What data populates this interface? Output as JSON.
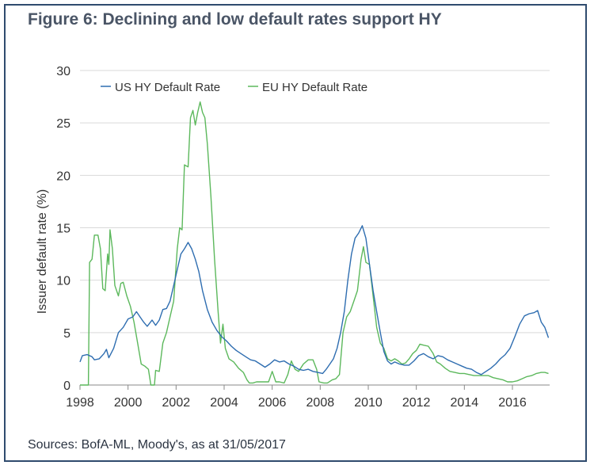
{
  "figure": {
    "title": "Figure 6: Declining and low default rates support HY",
    "source": "Sources: BofA-ML, Moody's, as at 31/05/2017"
  },
  "colors": {
    "us": "#2e6db0",
    "eu": "#5cb85c",
    "grid": "#d9d9d9",
    "frame": "#2f4b6e"
  },
  "chart_data": {
    "type": "line",
    "ylabel": "Issuer default rate (%)",
    "xlabel": "",
    "ylim": [
      0,
      30
    ],
    "xlim": [
      1998.0,
      2017.55
    ],
    "yticks": [
      0,
      5,
      10,
      15,
      20,
      25,
      30
    ],
    "xticks": [
      1998,
      2000,
      2002,
      2004,
      2006,
      2008,
      2010,
      2012,
      2014,
      2016
    ],
    "grid": "horizontal",
    "legend": "top-left",
    "series": [
      {
        "name": "US HY Default Rate",
        "color": "#2e6db0",
        "points": [
          [
            1998.0,
            2.2
          ],
          [
            1998.1,
            2.8
          ],
          [
            1998.3,
            2.9
          ],
          [
            1998.5,
            2.7
          ],
          [
            1998.6,
            2.4
          ],
          [
            1998.8,
            2.5
          ],
          [
            1999.0,
            3.0
          ],
          [
            1999.1,
            3.4
          ],
          [
            1999.2,
            2.6
          ],
          [
            1999.4,
            3.5
          ],
          [
            1999.6,
            5.0
          ],
          [
            1999.8,
            5.5
          ],
          [
            2000.0,
            6.3
          ],
          [
            2000.2,
            6.5
          ],
          [
            2000.35,
            7.0
          ],
          [
            2000.5,
            6.5
          ],
          [
            2000.65,
            6.0
          ],
          [
            2000.8,
            5.6
          ],
          [
            2001.0,
            6.2
          ],
          [
            2001.15,
            5.7
          ],
          [
            2001.3,
            6.2
          ],
          [
            2001.45,
            7.2
          ],
          [
            2001.6,
            7.3
          ],
          [
            2001.75,
            8.0
          ],
          [
            2001.9,
            9.5
          ],
          [
            2002.05,
            11.0
          ],
          [
            2002.2,
            12.5
          ],
          [
            2002.35,
            13.0
          ],
          [
            2002.5,
            13.6
          ],
          [
            2002.65,
            13.0
          ],
          [
            2002.8,
            12.0
          ],
          [
            2002.95,
            10.8
          ],
          [
            2003.1,
            9.0
          ],
          [
            2003.3,
            7.2
          ],
          [
            2003.5,
            6.0
          ],
          [
            2003.7,
            5.2
          ],
          [
            2003.9,
            4.6
          ],
          [
            2004.1,
            4.2
          ],
          [
            2004.3,
            3.7
          ],
          [
            2004.5,
            3.3
          ],
          [
            2004.7,
            3.0
          ],
          [
            2004.9,
            2.7
          ],
          [
            2005.1,
            2.4
          ],
          [
            2005.3,
            2.3
          ],
          [
            2005.5,
            2.0
          ],
          [
            2005.7,
            1.7
          ],
          [
            2005.9,
            2.0
          ],
          [
            2006.1,
            2.4
          ],
          [
            2006.3,
            2.2
          ],
          [
            2006.5,
            2.3
          ],
          [
            2006.7,
            2.0
          ],
          [
            2006.9,
            1.8
          ],
          [
            2007.1,
            1.5
          ],
          [
            2007.3,
            1.4
          ],
          [
            2007.5,
            1.5
          ],
          [
            2007.7,
            1.3
          ],
          [
            2007.9,
            1.2
          ],
          [
            2008.1,
            1.1
          ],
          [
            2008.25,
            1.5
          ],
          [
            2008.4,
            2.0
          ],
          [
            2008.55,
            2.5
          ],
          [
            2008.7,
            3.5
          ],
          [
            2008.85,
            5.0
          ],
          [
            2009.0,
            7.0
          ],
          [
            2009.15,
            10.0
          ],
          [
            2009.3,
            12.5
          ],
          [
            2009.45,
            14.0
          ],
          [
            2009.6,
            14.5
          ],
          [
            2009.75,
            15.2
          ],
          [
            2009.9,
            14.0
          ],
          [
            2010.05,
            11.5
          ],
          [
            2010.2,
            9.0
          ],
          [
            2010.35,
            7.0
          ],
          [
            2010.5,
            5.0
          ],
          [
            2010.65,
            3.2
          ],
          [
            2010.8,
            2.3
          ],
          [
            2010.95,
            2.0
          ],
          [
            2011.1,
            2.2
          ],
          [
            2011.3,
            2.0
          ],
          [
            2011.5,
            1.9
          ],
          [
            2011.7,
            1.9
          ],
          [
            2011.9,
            2.3
          ],
          [
            2012.1,
            2.8
          ],
          [
            2012.3,
            3.0
          ],
          [
            2012.5,
            2.7
          ],
          [
            2012.7,
            2.5
          ],
          [
            2012.9,
            2.8
          ],
          [
            2013.1,
            2.7
          ],
          [
            2013.3,
            2.4
          ],
          [
            2013.5,
            2.2
          ],
          [
            2013.7,
            2.0
          ],
          [
            2013.9,
            1.8
          ],
          [
            2014.1,
            1.6
          ],
          [
            2014.3,
            1.5
          ],
          [
            2014.5,
            1.2
          ],
          [
            2014.7,
            1.0
          ],
          [
            2014.9,
            1.3
          ],
          [
            2015.1,
            1.6
          ],
          [
            2015.3,
            2.0
          ],
          [
            2015.5,
            2.5
          ],
          [
            2015.7,
            2.9
          ],
          [
            2015.9,
            3.5
          ],
          [
            2016.1,
            4.6
          ],
          [
            2016.3,
            5.8
          ],
          [
            2016.5,
            6.6
          ],
          [
            2016.7,
            6.8
          ],
          [
            2016.9,
            6.9
          ],
          [
            2017.05,
            7.1
          ],
          [
            2017.2,
            6.0
          ],
          [
            2017.35,
            5.5
          ],
          [
            2017.5,
            4.5
          ]
        ]
      },
      {
        "name": "EU HY Default Rate",
        "color": "#5cb85c",
        "points": [
          [
            1998.0,
            0.0
          ],
          [
            1998.35,
            0.0
          ],
          [
            1998.4,
            11.7
          ],
          [
            1998.5,
            12.0
          ],
          [
            1998.6,
            14.3
          ],
          [
            1998.75,
            14.3
          ],
          [
            1998.85,
            13.0
          ],
          [
            1998.95,
            9.2
          ],
          [
            1999.05,
            9.0
          ],
          [
            1999.15,
            12.5
          ],
          [
            1999.2,
            11.5
          ],
          [
            1999.25,
            14.8
          ],
          [
            1999.35,
            13.0
          ],
          [
            1999.45,
            9.5
          ],
          [
            1999.6,
            8.5
          ],
          [
            1999.7,
            9.7
          ],
          [
            1999.8,
            9.8
          ],
          [
            1999.95,
            8.5
          ],
          [
            2000.1,
            7.5
          ],
          [
            2000.25,
            6.0
          ],
          [
            2000.4,
            4.0
          ],
          [
            2000.55,
            2.0
          ],
          [
            2000.7,
            1.8
          ],
          [
            2000.85,
            1.5
          ],
          [
            2000.95,
            0.0
          ],
          [
            2001.1,
            0.0
          ],
          [
            2001.15,
            1.4
          ],
          [
            2001.3,
            1.3
          ],
          [
            2001.45,
            4.0
          ],
          [
            2001.6,
            5.0
          ],
          [
            2001.75,
            6.5
          ],
          [
            2001.9,
            8.0
          ],
          [
            2002.05,
            13.0
          ],
          [
            2002.15,
            15.0
          ],
          [
            2002.25,
            14.8
          ],
          [
            2002.35,
            21.0
          ],
          [
            2002.5,
            20.8
          ],
          [
            2002.6,
            25.5
          ],
          [
            2002.7,
            26.2
          ],
          [
            2002.8,
            24.8
          ],
          [
            2002.9,
            26.0
          ],
          [
            2003.0,
            27.0
          ],
          [
            2003.1,
            26.0
          ],
          [
            2003.2,
            25.5
          ],
          [
            2003.3,
            23.0
          ],
          [
            2003.45,
            18.0
          ],
          [
            2003.6,
            12.0
          ],
          [
            2003.75,
            7.0
          ],
          [
            2003.85,
            4.0
          ],
          [
            2003.95,
            5.8
          ],
          [
            2004.05,
            3.5
          ],
          [
            2004.2,
            2.5
          ],
          [
            2004.4,
            2.2
          ],
          [
            2004.6,
            1.6
          ],
          [
            2004.8,
            1.2
          ],
          [
            2004.95,
            0.5
          ],
          [
            2005.05,
            0.2
          ],
          [
            2005.2,
            0.2
          ],
          [
            2005.35,
            0.3
          ],
          [
            2005.6,
            0.3
          ],
          [
            2005.85,
            0.3
          ],
          [
            2006.0,
            1.3
          ],
          [
            2006.15,
            0.3
          ],
          [
            2006.3,
            0.3
          ],
          [
            2006.5,
            0.2
          ],
          [
            2006.65,
            1.0
          ],
          [
            2006.8,
            2.3
          ],
          [
            2006.95,
            1.5
          ],
          [
            2007.1,
            1.3
          ],
          [
            2007.3,
            2.0
          ],
          [
            2007.5,
            2.4
          ],
          [
            2007.7,
            2.4
          ],
          [
            2007.85,
            1.5
          ],
          [
            2007.95,
            0.3
          ],
          [
            2008.15,
            0.2
          ],
          [
            2008.3,
            0.2
          ],
          [
            2008.5,
            0.5
          ],
          [
            2008.65,
            0.6
          ],
          [
            2008.8,
            1.0
          ],
          [
            2008.95,
            5.0
          ],
          [
            2009.1,
            6.5
          ],
          [
            2009.25,
            7.0
          ],
          [
            2009.4,
            8.0
          ],
          [
            2009.55,
            9.0
          ],
          [
            2009.7,
            12.0
          ],
          [
            2009.8,
            13.2
          ],
          [
            2009.9,
            11.7
          ],
          [
            2010.05,
            11.5
          ],
          [
            2010.2,
            8.5
          ],
          [
            2010.35,
            5.5
          ],
          [
            2010.5,
            4.0
          ],
          [
            2010.65,
            3.5
          ],
          [
            2010.8,
            2.5
          ],
          [
            2010.95,
            2.3
          ],
          [
            2011.1,
            2.5
          ],
          [
            2011.25,
            2.3
          ],
          [
            2011.4,
            2.0
          ],
          [
            2011.55,
            2.1
          ],
          [
            2011.7,
            2.5
          ],
          [
            2011.85,
            3.0
          ],
          [
            2012.0,
            3.3
          ],
          [
            2012.15,
            3.9
          ],
          [
            2012.3,
            3.8
          ],
          [
            2012.5,
            3.7
          ],
          [
            2012.7,
            3.0
          ],
          [
            2012.85,
            2.2
          ],
          [
            2013.0,
            2.0
          ],
          [
            2013.2,
            1.6
          ],
          [
            2013.4,
            1.3
          ],
          [
            2013.6,
            1.2
          ],
          [
            2013.8,
            1.1
          ],
          [
            2014.0,
            1.1
          ],
          [
            2014.2,
            1.0
          ],
          [
            2014.4,
            0.9
          ],
          [
            2014.6,
            0.9
          ],
          [
            2014.8,
            0.9
          ],
          [
            2015.0,
            0.9
          ],
          [
            2015.2,
            0.7
          ],
          [
            2015.4,
            0.6
          ],
          [
            2015.6,
            0.5
          ],
          [
            2015.8,
            0.3
          ],
          [
            2016.0,
            0.3
          ],
          [
            2016.2,
            0.4
          ],
          [
            2016.4,
            0.6
          ],
          [
            2016.6,
            0.8
          ],
          [
            2016.8,
            0.9
          ],
          [
            2017.0,
            1.1
          ],
          [
            2017.2,
            1.2
          ],
          [
            2017.35,
            1.2
          ],
          [
            2017.5,
            1.1
          ]
        ]
      }
    ]
  }
}
